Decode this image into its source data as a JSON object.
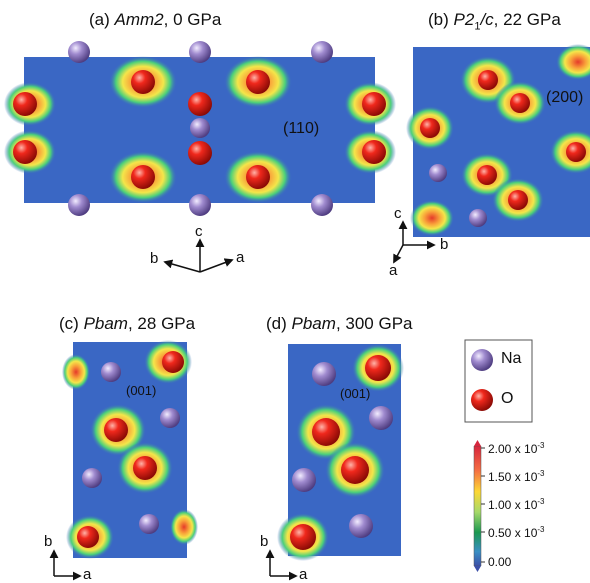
{
  "panels": {
    "a": {
      "label": "(a)",
      "name": "Amm2",
      "pressure": ", 0 GPa",
      "plane": "(110)"
    },
    "b": {
      "label": "(b)",
      "name_pre": "P2",
      "name_sub": "1",
      "name_post": "/c",
      "pressure": ", 22 GPa",
      "plane": "(200)"
    },
    "c": {
      "label": "(c)",
      "name": "Pbam",
      "pressure": ", 28 GPa",
      "plane": "(001)"
    },
    "d": {
      "label": "(d)",
      "name": "Pbam",
      "pressure": ", 300 GPa",
      "plane": "(001)"
    }
  },
  "axes": {
    "a_panel": {
      "c": "c",
      "b": "b",
      "a": "a"
    },
    "b_panel": {
      "c": "c",
      "b": "b",
      "a": "a"
    },
    "c_panel": {
      "b": "b",
      "a": "a"
    },
    "d_panel": {
      "b": "b",
      "a": "a"
    }
  },
  "legend": {
    "na": "Na",
    "o": "O"
  },
  "colorbar": {
    "ticks": [
      "2.00 x 10",
      "1.50 x 10",
      "1.00 x 10",
      "0.50 x 10",
      "0.00"
    ],
    "exponent": "-3",
    "colors": [
      "#d7263d",
      "#f46d43",
      "#fdd835",
      "#a6d96a",
      "#1a9850",
      "#3a6fc4",
      "#3b4fa8"
    ]
  },
  "colors": {
    "background": "#3a67c4",
    "na_atom": "#9b86c8",
    "o_atom": "#e0201b"
  }
}
